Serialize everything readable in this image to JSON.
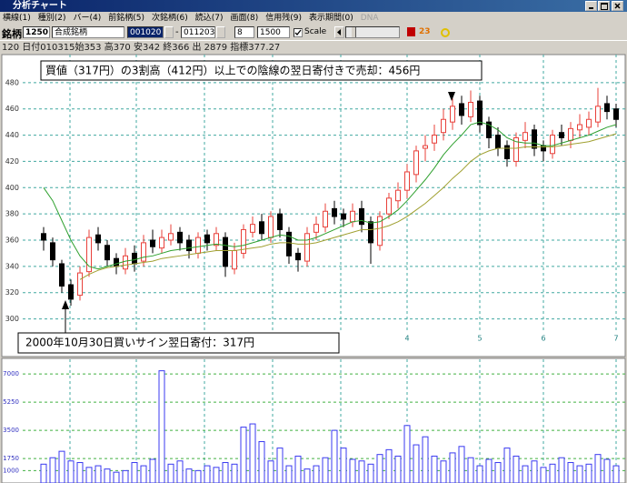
{
  "window": {
    "title": "分析チャート",
    "menu": [
      "横線(1)",
      "種別(2)",
      "バー(4)",
      "前銘柄(5)",
      "次銘柄(6)",
      "読込(7)",
      "画面(8)",
      "信用残(9)",
      "表示期間(0)",
      "DNA"
    ]
  },
  "toolbar": {
    "code_label": "銘柄",
    "code": "1250",
    "name": "合成銘柄",
    "from": "001020",
    "dash": "-",
    "to": "011203",
    "field1": "8",
    "field2": "1500",
    "scale": "Scale",
    "count": "23"
  },
  "info": "120 日付010315始353 高370 安342 終366 出 2879 指標377.27",
  "chart_data": {
    "type": "candlestick",
    "annotations": [
      "買値（317円）の3割高（412円）以上での陰線の翌日寄付きで売却：456円",
      "2000年10月30日買いサイン翌日寄付：317円"
    ],
    "open": [
      365,
      358,
      342,
      326,
      318,
      336,
      364,
      356,
      346,
      338,
      350,
      344,
      360,
      354,
      360,
      366,
      360,
      350,
      364,
      356,
      362,
      338,
      350,
      366,
      374,
      362,
      380,
      366,
      350,
      344,
      366,
      370,
      384,
      380,
      374,
      384,
      374,
      356,
      380,
      390,
      398,
      410,
      430,
      434,
      442,
      450,
      464,
      454,
      466,
      450,
      440,
      432,
      420,
      436,
      444,
      432,
      426,
      442,
      436,
      444,
      446,
      450,
      464,
      460
    ],
    "high": [
      370,
      362,
      345,
      330,
      340,
      368,
      370,
      360,
      350,
      354,
      356,
      364,
      368,
      368,
      372,
      370,
      364,
      366,
      368,
      370,
      366,
      358,
      372,
      378,
      380,
      382,
      384,
      370,
      354,
      370,
      378,
      388,
      390,
      384,
      388,
      390,
      378,
      382,
      396,
      404,
      418,
      432,
      440,
      448,
      460,
      468,
      470,
      474,
      470,
      454,
      446,
      436,
      442,
      450,
      448,
      436,
      444,
      448,
      450,
      456,
      458,
      476,
      470,
      464
    ],
    "low": [
      352,
      340,
      320,
      310,
      314,
      332,
      352,
      340,
      334,
      334,
      336,
      340,
      350,
      350,
      356,
      352,
      346,
      346,
      352,
      352,
      332,
      334,
      346,
      362,
      360,
      358,
      362,
      342,
      336,
      340,
      360,
      366,
      372,
      370,
      370,
      366,
      342,
      352,
      376,
      384,
      392,
      404,
      420,
      428,
      436,
      444,
      448,
      450,
      442,
      430,
      424,
      416,
      416,
      430,
      424,
      420,
      422,
      432,
      430,
      438,
      440,
      446,
      452,
      446
    ],
    "close": [
      360,
      345,
      325,
      315,
      335,
      362,
      358,
      345,
      340,
      348,
      342,
      358,
      355,
      362,
      365,
      358,
      352,
      362,
      358,
      365,
      340,
      352,
      368,
      372,
      365,
      378,
      368,
      348,
      345,
      365,
      372,
      382,
      378,
      376,
      382,
      372,
      358,
      378,
      392,
      398,
      412,
      428,
      432,
      440,
      452,
      462,
      455,
      465,
      448,
      438,
      430,
      422,
      438,
      442,
      430,
      428,
      440,
      438,
      445,
      448,
      452,
      462,
      458,
      452
    ],
    "up_color": "#e8403a",
    "down_color": "#000000",
    "moving_averages": [
      {
        "color": "#2ea02e",
        "values": [
          400,
          390,
          375,
          360,
          348,
          340,
          338,
          340,
          342,
          344,
          345,
          347,
          348,
          350,
          352,
          353,
          354,
          355,
          356,
          357,
          356,
          355,
          356,
          358,
          360,
          362,
          364,
          363,
          360,
          360,
          362,
          365,
          368,
          371,
          374,
          375,
          373,
          374,
          378,
          383,
          390,
          398,
          406,
          415,
          425,
          433,
          440,
          448,
          450,
          448,
          444,
          438,
          435,
          434,
          434,
          432,
          432,
          434,
          436,
          438,
          440,
          443,
          446,
          448
        ]
      },
      {
        "color": "#a0a030",
        "values": [
          null,
          null,
          null,
          null,
          330,
          334,
          337,
          339,
          340,
          341,
          342,
          343,
          344,
          346,
          347,
          348,
          349,
          350,
          351,
          352,
          352,
          352,
          353,
          354,
          355,
          357,
          358,
          358,
          357,
          357,
          358,
          360,
          362,
          364,
          366,
          368,
          368,
          369,
          371,
          374,
          378,
          383,
          388,
          394,
          400,
          407,
          413,
          420,
          425,
          428,
          430,
          430,
          430,
          431,
          431,
          431,
          431,
          432,
          433,
          434,
          435,
          437,
          439,
          441
        ]
      }
    ],
    "volume": [
      1400,
      1800,
      2200,
      1600,
      1500,
      1200,
      1300,
      1100,
      900,
      1000,
      1500,
      1300,
      1700,
      7200,
      1400,
      1600,
      1100,
      1000,
      1300,
      1200,
      1500,
      1400,
      3700,
      3900,
      2800,
      1600,
      2400,
      1300,
      1900,
      1100,
      1300,
      1800,
      3500,
      2400,
      1700,
      1600,
      1400,
      2000,
      2300,
      1900,
      3800,
      2600,
      3100,
      1900,
      1600,
      2100,
      2500,
      1800,
      1300,
      1700,
      1500,
      2400,
      1900,
      1300,
      1600,
      1200,
      1400,
      1800,
      1500,
      1300,
      1400,
      2000,
      1700,
      1300
    ],
    "volume_color": "#3a3af0",
    "ylim": [
      290,
      500
    ],
    "yticks": [
      300,
      320,
      340,
      360,
      380,
      400,
      420,
      440,
      460,
      480
    ],
    "volume_ylim": [
      400,
      7800
    ],
    "volume_yticks": [
      1000,
      1750,
      3500,
      5250,
      7000
    ],
    "xticks": [
      {
        "value": 40,
        "label": "4"
      },
      {
        "value": 48,
        "label": "5"
      },
      {
        "value": 55,
        "label": "6"
      },
      {
        "value": 63,
        "label": "7"
      }
    ],
    "grid": true
  }
}
